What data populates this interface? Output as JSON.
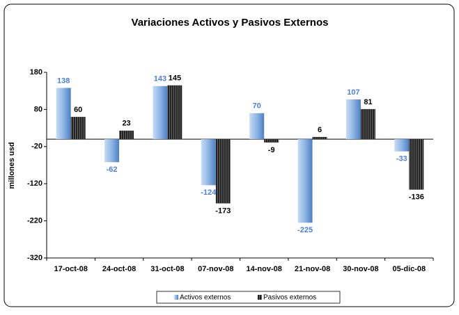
{
  "chart_data": {
    "type": "bar",
    "title": "Variaciones Activos y Pasivos Externos",
    "y_label": "millones usd",
    "categories": [
      "17-oct-08",
      "24-oct-08",
      "31-oct-08",
      "07-nov-08",
      "14-nov-08",
      "21-nov-08",
      "30-nov-08",
      "05-dic-08"
    ],
    "series": [
      {
        "name": "Activos externos",
        "color": "#6fa0dc",
        "values": [
          138,
          -62,
          143,
          -124,
          70,
          -225,
          107,
          -33
        ]
      },
      {
        "name": "Pasivos externos",
        "color": "#333333",
        "values": [
          60,
          23,
          145,
          -173,
          -9,
          6,
          81,
          -136
        ]
      }
    ],
    "ylim": [
      -320,
      180
    ],
    "yticks": [
      -320,
      -220,
      -120,
      -20,
      80,
      180
    ],
    "grid": false,
    "legend": "bottom"
  }
}
